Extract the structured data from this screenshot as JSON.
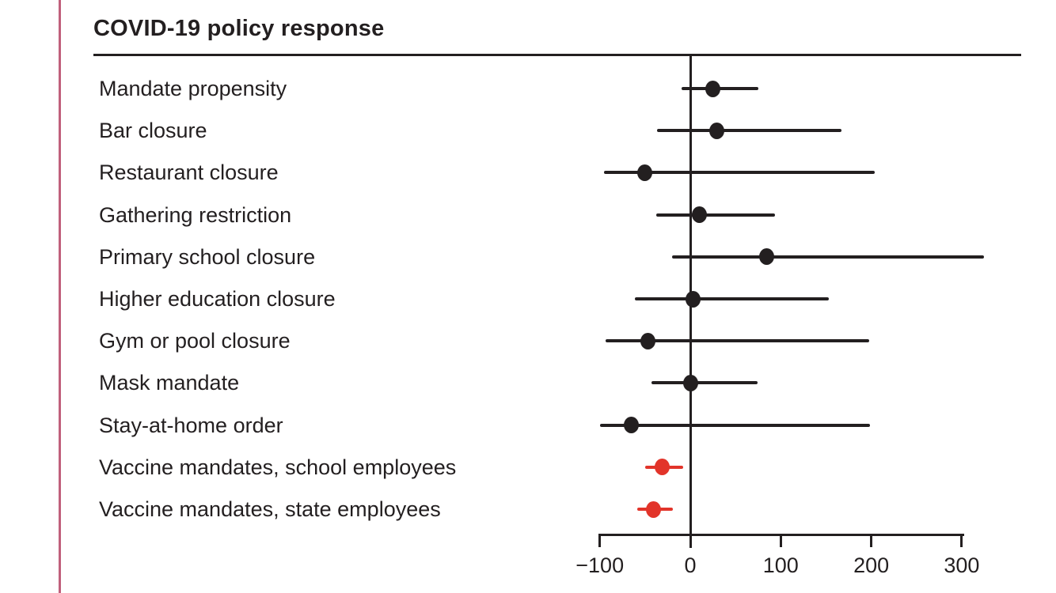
{
  "figure": {
    "accent_color": "#c0607c",
    "text_color": "#231f20",
    "axis_color": "#231f20"
  },
  "chart_data": {
    "type": "scatter",
    "variant": "forest-plot",
    "title": "COVID-19 policy response",
    "xlabel": "",
    "ylabel": "",
    "xlim": [
      -113,
      330
    ],
    "x_ticks": [
      -100,
      0,
      100,
      200,
      300
    ],
    "x_tick_labels": [
      "−100",
      "0",
      "100",
      "200",
      "300"
    ],
    "reference_line_x": 0,
    "grid": false,
    "legend": false,
    "point_colors": {
      "default": "#231f20",
      "highlight": "#e2342a"
    },
    "rows": [
      {
        "label": "Mandate propensity",
        "estimate": 25,
        "ci_low": -10,
        "ci_high": 75,
        "color": "default"
      },
      {
        "label": "Bar closure",
        "estimate": 29,
        "ci_low": -37,
        "ci_high": 167,
        "color": "default"
      },
      {
        "label": "Restaurant closure",
        "estimate": -50,
        "ci_low": -95,
        "ci_high": 204,
        "color": "default"
      },
      {
        "label": "Gathering restriction",
        "estimate": 10,
        "ci_low": -38,
        "ci_high": 94,
        "color": "default"
      },
      {
        "label": "Primary school closure",
        "estimate": 84,
        "ci_low": -20,
        "ci_high": 325,
        "color": "default"
      },
      {
        "label": "Higher education closure",
        "estimate": 3,
        "ci_low": -61,
        "ci_high": 153,
        "color": "default"
      },
      {
        "label": "Gym or pool closure",
        "estimate": -47,
        "ci_low": -94,
        "ci_high": 198,
        "color": "default"
      },
      {
        "label": "Mask mandate",
        "estimate": 0,
        "ci_low": -43,
        "ci_high": 74,
        "color": "default"
      },
      {
        "label": "Stay-at-home order",
        "estimate": -65,
        "ci_low": -100,
        "ci_high": 199,
        "color": "default"
      },
      {
        "label": "Vaccine mandates, school employees",
        "estimate": -31,
        "ci_low": -50,
        "ci_high": -8,
        "color": "highlight"
      },
      {
        "label": "Vaccine mandates, state employees",
        "estimate": -41,
        "ci_low": -59,
        "ci_high": -19,
        "color": "highlight"
      }
    ]
  }
}
